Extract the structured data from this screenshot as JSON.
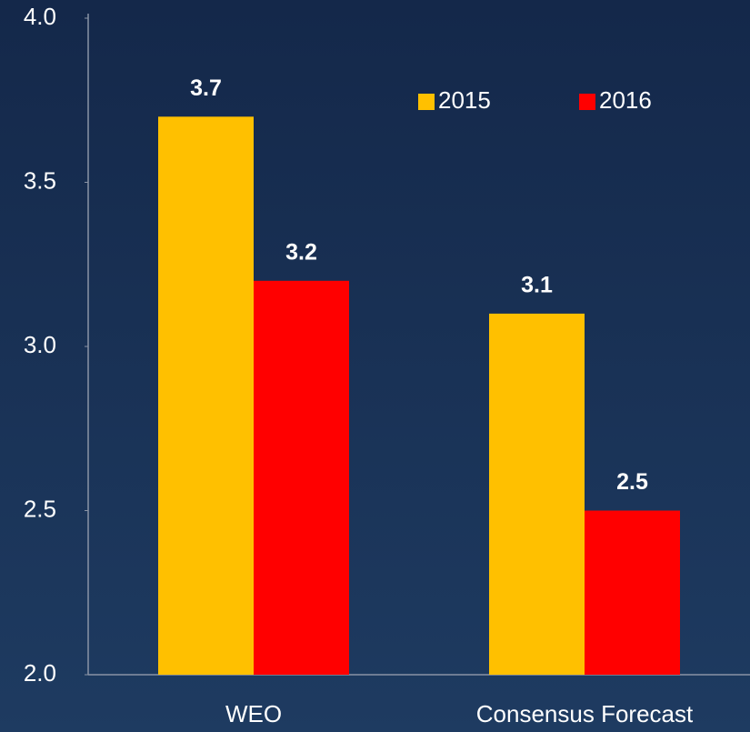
{
  "chart_data": {
    "type": "bar",
    "categories": [
      "WEO",
      "Consensus Forecast"
    ],
    "series": [
      {
        "name": "2015",
        "color": "#ffc000",
        "values": [
          3.7,
          3.1
        ]
      },
      {
        "name": "2016",
        "color": "#ff0000",
        "values": [
          3.2,
          2.5
        ]
      }
    ],
    "ylim": [
      2,
      4
    ],
    "yticks": [
      {
        "value": 2,
        "label": "2.0"
      },
      {
        "value": 2.5,
        "label": "2.5"
      },
      {
        "value": 3,
        "label": "3.0"
      },
      {
        "value": 3.5,
        "label": "3.5"
      },
      {
        "value": 4,
        "label": "4.0"
      }
    ],
    "grid": false,
    "legend": "upper right"
  }
}
